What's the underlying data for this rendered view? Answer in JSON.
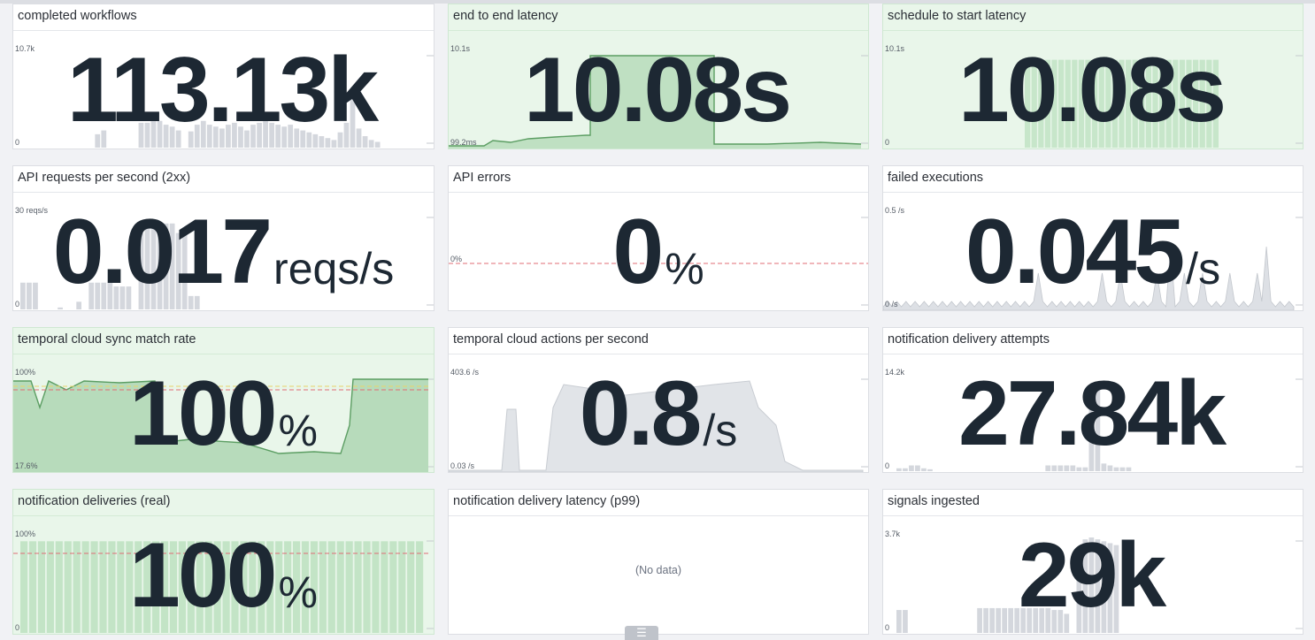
{
  "colors": {
    "background": "#f1f2f5",
    "panel": "#ffffff",
    "panel_green": "#e9f6ea",
    "value_text": "#1d2833",
    "bar_gray": "#d4d7dd",
    "line_green": "#5c9e63",
    "threshold_red": "#e06c75",
    "threshold_yellow": "#e8d36a"
  },
  "icons": {
    "footer_handle": "list-icon",
    "footer_handle_glyph": "☰"
  },
  "widgets": [
    {
      "title": "completed workflows",
      "value": "113.13k",
      "unit": "",
      "y_max": "10.7k",
      "y_min": "0",
      "chart": "bars",
      "bars": [
        0,
        0,
        0,
        0,
        0,
        0,
        0,
        0,
        0,
        0,
        0,
        0,
        14,
        18,
        0,
        0,
        0,
        0,
        0,
        26,
        26,
        30,
        28,
        24,
        22,
        18,
        0,
        17,
        24,
        28,
        24,
        22,
        20,
        24,
        26,
        22,
        18,
        24,
        26,
        28,
        26,
        24,
        22,
        24,
        20,
        18,
        16,
        14,
        12,
        10,
        8,
        16,
        26,
        56,
        20,
        12,
        8,
        6,
        0,
        0,
        0,
        0,
        0,
        0,
        0
      ],
      "bars_tail_light": true
    },
    {
      "title": "end to end latency",
      "value": "10.08s",
      "unit": "",
      "y_max": "10.1s",
      "y_min": "99.2ms",
      "chart": "line_green_block",
      "green": true
    },
    {
      "title": "schedule to start latency",
      "value": "10.08s",
      "unit": "",
      "y_max": "10.1s",
      "y_min": "0",
      "chart": "green_bars",
      "green": true
    },
    {
      "title": "API requests per second (2xx)",
      "value": "0.017",
      "unit": "reqs/s",
      "y_max": "30 reqs/s",
      "y_min": "0",
      "chart": "bars",
      "bars": [
        28,
        28,
        28,
        0,
        0,
        0,
        2,
        0,
        0,
        8,
        0,
        28,
        28,
        28,
        28,
        24,
        24,
        24,
        0,
        80,
        90,
        90,
        90,
        90,
        90,
        80,
        80,
        14,
        14,
        0,
        0,
        0,
        0,
        0,
        0,
        0,
        0,
        0,
        0,
        0,
        0,
        0,
        0,
        0,
        0,
        0,
        0,
        0,
        0,
        0,
        0,
        0,
        0,
        0,
        0,
        0,
        0,
        0,
        0,
        0,
        0,
        0,
        0,
        0,
        0
      ]
    },
    {
      "title": "API errors",
      "value": "0",
      "unit": "%",
      "y_max": "0%",
      "y_min": "",
      "chart": "red_line"
    },
    {
      "title": "failed executions",
      "value": "0.045",
      "unit": "/s",
      "y_max": "0.5 /s",
      "y_min": "0 /s",
      "chart": "spikes"
    },
    {
      "title": "temporal cloud sync match rate",
      "value": "100",
      "unit": "%",
      "y_max": "100%",
      "y_min": "17.6%",
      "chart": "match_rate",
      "green": true
    },
    {
      "title": "temporal cloud actions per second",
      "value": "0.8",
      "unit": "/s",
      "y_max": "403.6 /s",
      "y_min": "0.03 /s",
      "chart": "area_gray"
    },
    {
      "title": "notification delivery attempts",
      "value": "27.84k",
      "unit": "",
      "y_max": "14.2k",
      "y_min": "0",
      "chart": "bars",
      "bars": [
        0,
        3,
        3,
        6,
        6,
        3,
        2,
        0,
        0,
        0,
        0,
        0,
        0,
        0,
        0,
        0,
        0,
        0,
        0,
        0,
        0,
        0,
        0,
        0,
        0,
        6,
        6,
        6,
        6,
        6,
        4,
        4,
        70,
        90,
        8,
        6,
        4,
        4,
        4,
        0,
        0,
        0,
        0,
        0,
        0,
        0,
        0,
        0,
        0,
        0,
        0,
        0,
        0,
        0,
        0,
        0,
        0,
        0,
        0,
        0,
        0,
        0,
        0,
        0,
        0
      ]
    },
    {
      "title": "notification deliveries (real)",
      "value": "100",
      "unit": "%",
      "y_max": "100%",
      "y_min": "0",
      "chart": "green_full",
      "green": true
    },
    {
      "title": "notification delivery latency (p99)",
      "value": "",
      "unit": "",
      "y_max": "",
      "y_min": "",
      "chart": "none",
      "no_data": "(No data)"
    },
    {
      "title": "signals ingested",
      "value": "29k",
      "unit": "",
      "y_max": "3.7k",
      "y_min": "0",
      "chart": "bars",
      "bars": [
        0,
        24,
        24,
        0,
        0,
        0,
        0,
        0,
        0,
        0,
        0,
        0,
        0,
        0,
        26,
        26,
        26,
        26,
        26,
        26,
        26,
        26,
        26,
        26,
        26,
        26,
        24,
        24,
        20,
        0,
        62,
        98,
        100,
        98,
        96,
        94,
        92,
        0,
        0,
        0,
        0,
        0,
        0,
        0,
        0,
        0,
        0,
        0,
        0,
        0,
        0,
        0,
        0,
        0,
        0,
        0,
        0,
        0,
        0,
        0,
        0,
        0,
        0,
        0,
        0
      ]
    }
  ]
}
